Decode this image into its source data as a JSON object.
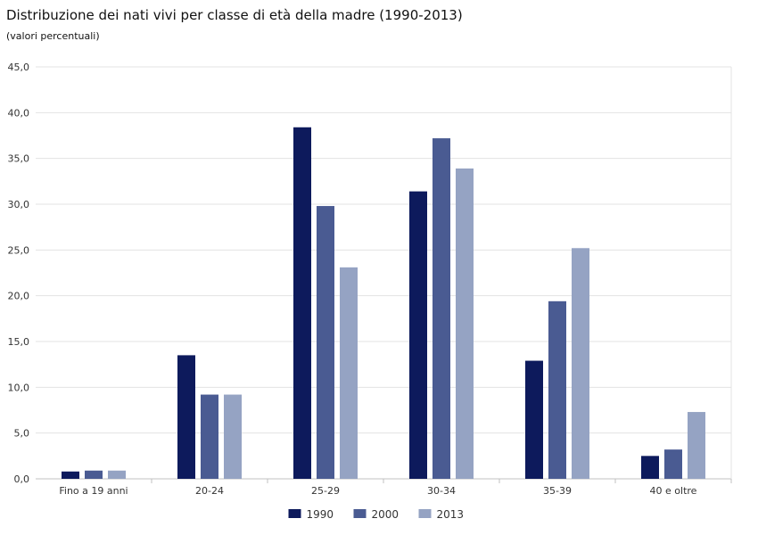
{
  "header": {
    "title": "Distribuzione dei nati vivi per classe di età della madre (1990-2013)",
    "subtitle": "(valori percentuali)"
  },
  "chart_data": {
    "type": "bar",
    "title": "Distribuzione dei nati vivi per classe di età della madre (1990-2013)",
    "subtitle": "(valori percentuali)",
    "xlabel": "",
    "ylabel": "",
    "categories": [
      "Fino a 19 anni",
      "20-24",
      "25-29",
      "30-34",
      "35-39",
      "40 e oltre"
    ],
    "series": [
      {
        "name": "1990",
        "color": "#0d1a5c",
        "values": [
          0.8,
          13.5,
          38.4,
          31.4,
          12.9,
          2.5
        ]
      },
      {
        "name": "2000",
        "color": "#4a5b92",
        "values": [
          0.9,
          9.2,
          29.8,
          37.2,
          19.4,
          3.2
        ]
      },
      {
        "name": "2013",
        "color": "#95a3c3",
        "values": [
          0.9,
          9.2,
          23.1,
          33.9,
          25.2,
          7.3
        ]
      }
    ],
    "ylim": [
      0,
      45
    ],
    "yticks": [
      "0,0",
      "5,0",
      "10,0",
      "15,0",
      "20,0",
      "25,0",
      "30,0",
      "35,0",
      "40,0",
      "45,0"
    ],
    "grid": true,
    "legend_position": "bottom-center"
  }
}
